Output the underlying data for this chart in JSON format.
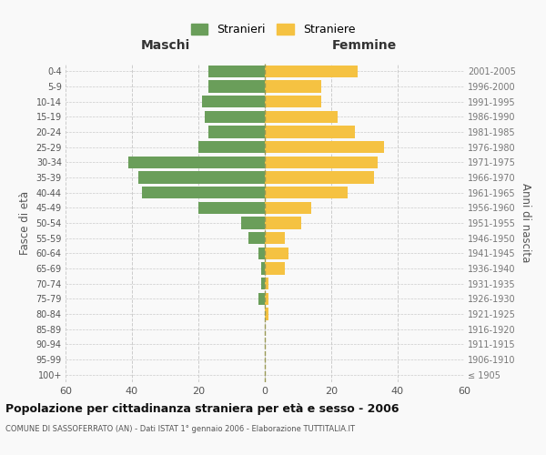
{
  "age_groups": [
    "100+",
    "95-99",
    "90-94",
    "85-89",
    "80-84",
    "75-79",
    "70-74",
    "65-69",
    "60-64",
    "55-59",
    "50-54",
    "45-49",
    "40-44",
    "35-39",
    "30-34",
    "25-29",
    "20-24",
    "15-19",
    "10-14",
    "5-9",
    "0-4"
  ],
  "birth_years": [
    "≤ 1905",
    "1906-1910",
    "1911-1915",
    "1916-1920",
    "1921-1925",
    "1926-1930",
    "1931-1935",
    "1936-1940",
    "1941-1945",
    "1946-1950",
    "1951-1955",
    "1956-1960",
    "1961-1965",
    "1966-1970",
    "1971-1975",
    "1976-1980",
    "1981-1985",
    "1986-1990",
    "1991-1995",
    "1996-2000",
    "2001-2005"
  ],
  "maschi": [
    0,
    0,
    0,
    0,
    0,
    2,
    1,
    1,
    2,
    5,
    7,
    20,
    37,
    38,
    41,
    20,
    17,
    18,
    19,
    17,
    17
  ],
  "femmine": [
    0,
    0,
    0,
    0,
    1,
    1,
    1,
    6,
    7,
    6,
    11,
    14,
    25,
    33,
    34,
    36,
    27,
    22,
    17,
    17,
    28
  ],
  "male_color": "#6a9e5a",
  "female_color": "#f5c242",
  "background_color": "#f9f9f9",
  "grid_color": "#cccccc",
  "title": "Popolazione per cittadinanza straniera per età e sesso - 2006",
  "subtitle": "COMUNE DI SASSOFERRATO (AN) - Dati ISTAT 1° gennaio 2006 - Elaborazione TUTTITALIA.IT",
  "xlabel_left": "Maschi",
  "xlabel_right": "Femmine",
  "ylabel_left": "Fasce di età",
  "ylabel_right": "Anni di nascita",
  "legend_male": "Stranieri",
  "legend_female": "Straniere",
  "xlim": 60,
  "bar_height": 0.8
}
